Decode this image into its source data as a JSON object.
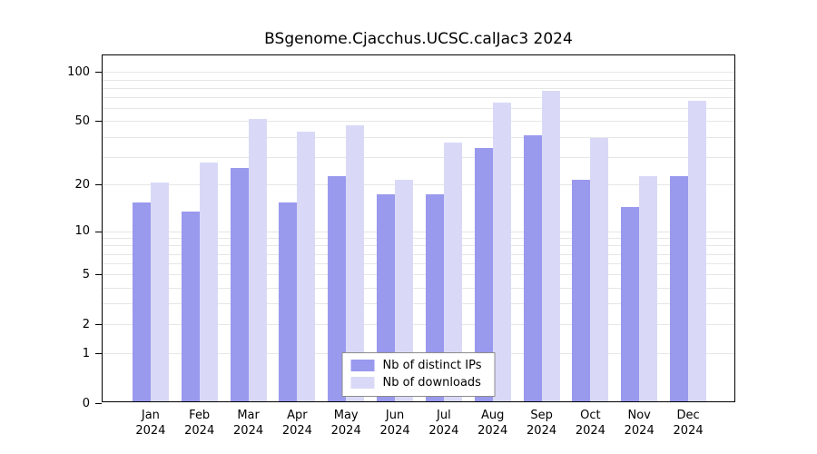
{
  "chart_data": {
    "type": "bar",
    "title": "BSgenome.Cjacchus.UCSC.calJac3 2024",
    "categories": [
      "Jan",
      "Feb",
      "Mar",
      "Apr",
      "May",
      "Jun",
      "Jul",
      "Aug",
      "Sep",
      "Oct",
      "Nov",
      "Dec"
    ],
    "year_label": "2024",
    "series": [
      {
        "name": "Nb of distinct IPs",
        "color": "#9999ee",
        "values": [
          15,
          13,
          25,
          15,
          22,
          17,
          17,
          33,
          40,
          21,
          14,
          22
        ]
      },
      {
        "name": "Nb of downloads",
        "color": "#d9d9f7",
        "values": [
          20,
          27,
          50,
          42,
          46,
          21,
          36,
          63,
          75,
          38,
          22,
          65
        ]
      }
    ],
    "scale": "log10(value+1)",
    "y_ticks": [
      0,
      1,
      2,
      5,
      10,
      20,
      50,
      100
    ],
    "y_gridlines": [
      1,
      2,
      3,
      4,
      5,
      6,
      7,
      8,
      9,
      10,
      20,
      30,
      40,
      50,
      60,
      70,
      80,
      90,
      100
    ],
    "ylim": [
      0,
      126
    ],
    "grid": "horizontal",
    "legend_position": "inside-bottom-center",
    "axis_color": "#000000",
    "gridline_color": "#e6e6e6",
    "background": "#ffffff"
  }
}
